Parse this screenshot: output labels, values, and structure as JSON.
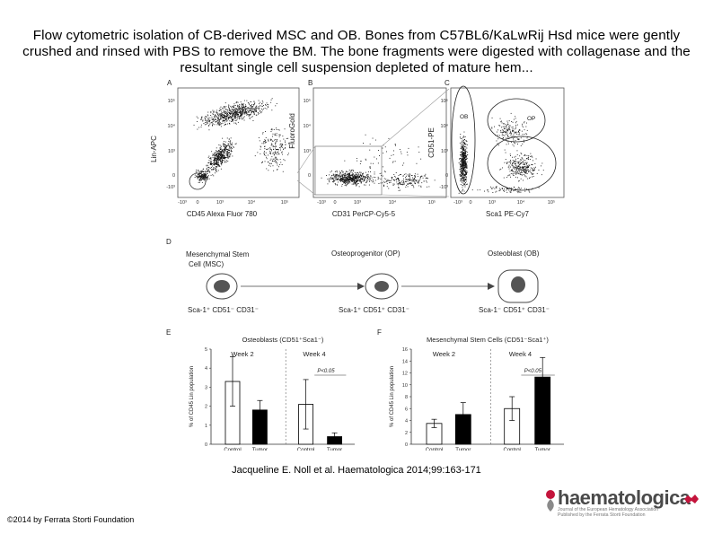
{
  "caption": "Flow cytometric isolation of CB-derived MSC and OB. Bones from C57BL6/KaLwRij Hsd mice were gently crushed and rinsed with PBS to remove the BM. The bone fragments were digested with collagenase and the resultant single cell suspension depleted of mature hem...",
  "citation": "Jacqueline E. Noll et al. Haematologica 2014;99:163-171",
  "copyright": "©2014 by Ferrata Storti Foundation",
  "logo": {
    "word": "haematologica",
    "sub1": "Journal of the European Hematology Association",
    "sub2": "Published by the Ferrata Storti Foundation",
    "brand_color": "#c4143c"
  },
  "figure": {
    "panels": {
      "a": "A",
      "b": "B",
      "c": "C",
      "d": "D",
      "e": "E",
      "f": "F"
    },
    "flow": {
      "a_ylabel": "Lin-APC",
      "a_xlabel": "CD45 Alexa Fluor 780",
      "b_ylabel": "FluoroGold",
      "b_xlabel": "CD31 PerCP-Cy5-5",
      "c_ylabel": "CD51-PE",
      "c_xlabel": "Sca1 PE-Cy7",
      "ticks_y": [
        "10⁵",
        "10⁴",
        "10³",
        "0",
        "-10³"
      ],
      "ticks_y_b": [
        "10⁵",
        "10⁴",
        "10³",
        "0"
      ],
      "ticks_x": [
        "-10³",
        "0",
        "10³",
        "10⁴",
        "10⁵"
      ],
      "gate_ob": "OB",
      "gate_op": "OP",
      "gate_msc": "MSC"
    },
    "diagram": {
      "msc_title_1": "Mesenchymal Stem",
      "msc_title_2": "Cell (MSC)",
      "op_title": "Osteoprogenitor (OP)",
      "ob_title": "Osteoblast (OB)",
      "msc_pheno": "Sca-1⁺ CD51⁻ CD31⁻",
      "op_pheno": "Sca-1⁺ CD51⁺ CD31⁻",
      "ob_pheno": "Sca-1⁻ CD51⁺ CD31⁻"
    }
  },
  "chart_data": [
    {
      "type": "bar",
      "title": "Osteoblasts (CD51⁺Sca1⁻)",
      "ylabel": "% of CD45 Lin population",
      "categories": [
        "Control",
        "Tumor",
        "Control",
        "Tumor"
      ],
      "groups": [
        "Week 2",
        "Week 4"
      ],
      "values": [
        3.3,
        1.8,
        2.1,
        0.4
      ],
      "errors": [
        1.3,
        0.5,
        1.3,
        0.2
      ],
      "fills": [
        "white",
        "black",
        "white",
        "black"
      ],
      "ylim": [
        0,
        5
      ],
      "yticks": [
        0,
        1,
        2,
        3,
        4,
        5
      ],
      "annotation": "P<0.05"
    },
    {
      "type": "bar",
      "title": "Mesenchymal Stem Cells (CD51⁻Sca1⁺)",
      "ylabel": "% of CD45 Lin population",
      "categories": [
        "Control",
        "Tumor",
        "Control",
        "Tumor"
      ],
      "groups": [
        "Week 2",
        "Week 4"
      ],
      "values": [
        3.5,
        5.0,
        6.0,
        11.3
      ],
      "errors": [
        0.7,
        2.0,
        2.0,
        3.3
      ],
      "fills": [
        "white",
        "black",
        "white",
        "black"
      ],
      "ylim": [
        0,
        16
      ],
      "yticks": [
        0,
        2,
        4,
        6,
        8,
        10,
        12,
        14,
        16
      ],
      "annotation": "P<0.05"
    }
  ]
}
